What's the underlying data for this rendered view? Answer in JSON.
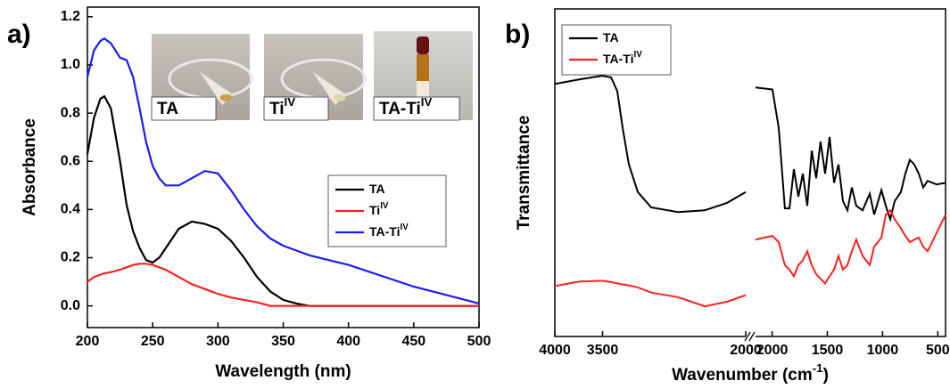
{
  "chart_data": [
    {
      "type": "line",
      "panel_label": "a)",
      "xlabel": "Wavelength (nm)",
      "ylabel": "Absorbance",
      "x": [
        200,
        205,
        210,
        213,
        218,
        225,
        230,
        235,
        240,
        245,
        250,
        255,
        260,
        270,
        280,
        290,
        300,
        310,
        320,
        330,
        340,
        350,
        360,
        370,
        400,
        450,
        500
      ],
      "xlim": [
        200,
        500
      ],
      "xticks": [
        200,
        250,
        300,
        350,
        400,
        450,
        500
      ],
      "ylim": [
        -0.09,
        1.24
      ],
      "yticks": [
        {
          "value": 0,
          "label": "0.0"
        },
        0.2,
        0.4,
        0.6,
        0.8,
        {
          "value": 1,
          "label": "1.0"
        },
        1.2
      ],
      "legend": "center right",
      "series": [
        {
          "name": "TA",
          "color": "#000000",
          "values": [
            0.63,
            0.78,
            0.86,
            0.87,
            0.82,
            0.6,
            0.42,
            0.31,
            0.24,
            0.19,
            0.18,
            0.2,
            0.24,
            0.32,
            0.35,
            0.34,
            0.32,
            0.27,
            0.2,
            0.12,
            0.06,
            0.025,
            0.01,
            0,
            0,
            0,
            0
          ]
        },
        {
          "name": "Ti",
          "name_superscript": "IV",
          "color": "#ff2020",
          "values": [
            0.1,
            0.12,
            0.13,
            0.135,
            0.14,
            0.15,
            0.16,
            0.17,
            0.175,
            0.175,
            0.17,
            0.16,
            0.15,
            0.12,
            0.09,
            0.07,
            0.05,
            0.035,
            0.025,
            0.015,
            0,
            0,
            0,
            0,
            0,
            0,
            0
          ]
        },
        {
          "name": "TA-Ti",
          "name_superscript": "IV",
          "color": "#1a1aff",
          "values": [
            0.95,
            1.06,
            1.1,
            1.11,
            1.09,
            1.03,
            1.02,
            0.95,
            0.82,
            0.68,
            0.58,
            0.53,
            0.5,
            0.5,
            0.53,
            0.56,
            0.55,
            0.48,
            0.4,
            0.33,
            0.28,
            0.25,
            0.23,
            0.21,
            0.17,
            0.08,
            0.01
          ]
        }
      ],
      "insets": [
        {
          "label": "TA"
        },
        {
          "label": "Ti",
          "superscript": "IV"
        },
        {
          "label": "TA-Ti",
          "superscript": "IV"
        }
      ]
    },
    {
      "type": "line",
      "panel_label": "b)",
      "xlabel": [
        "Wavenumber (cm",
        "-1",
        ")"
      ],
      "ylabel": "Transmittance",
      "ylim": [
        0,
        100
      ],
      "legend": "upper left",
      "segments": [
        {
          "xlim": [
            4000,
            2000
          ],
          "xticks": [
            4000,
            3500,
            2000
          ],
          "x": [
            4000,
            3738,
            3505,
            3411,
            3346,
            3290,
            3224,
            3131,
            2991,
            2710,
            2430,
            2196,
            2000
          ]
        },
        {
          "xlim": [
            2150,
            430
          ],
          "xticks": [
            2000,
            1500,
            1000,
            500
          ],
          "x": [
            2150,
            1997,
            1940,
            1884,
            1843,
            1803,
            1762,
            1722,
            1682,
            1641,
            1601,
            1561,
            1520,
            1480,
            1439,
            1399,
            1359,
            1318,
            1278,
            1238,
            1181,
            1116,
            1076,
            1011,
            971,
            931,
            890,
            834,
            794,
            753,
            713,
            672,
            632,
            592,
            511,
            430
          ]
        }
      ],
      "series": [
        {
          "name": "TA",
          "color": "#000000",
          "values": [
            [
              77.1,
              78.5,
              79.6,
              79.1,
              74.9,
              63.7,
              52.5,
              44.1,
              39.4,
              38.0,
              38.5,
              40.8,
              44.1
            ],
            [
              76.0,
              75.4,
              63.7,
              39.1,
              39.1,
              51.1,
              42.7,
              49.7,
              39.9,
              56.7,
              48.3,
              59.5,
              49.7,
              60.9,
              46.9,
              52.5,
              41.3,
              38.5,
              45.5,
              39.9,
              38.5,
              43.6,
              37.2,
              44.7,
              39.9,
              35.8,
              41.3,
              44.1,
              49.7,
              53.9,
              52.5,
              49.7,
              45.5,
              47.5,
              46.4,
              46.9
            ]
          ]
        },
        {
          "name": "TA-Ti",
          "name_superscript": "IV",
          "color": "#ff2020",
          "values": [
            [
              15.4,
              16.8,
              17.0,
              16.6,
              16.2,
              15.9,
              15.6,
              15.0,
              13.4,
              12.0,
              9.2,
              10.6,
              12.6
            ],
            [
              29.6,
              30.7,
              28.8,
              21.8,
              20.4,
              18.4,
              21.8,
              23.2,
              26.0,
              21.8,
              19.0,
              17.6,
              16.2,
              18.4,
              20.4,
              24.6,
              20.4,
              21.8,
              26.0,
              29.6,
              24.6,
              21.8,
              27.4,
              30.2,
              37.2,
              38.5,
              35.8,
              33.0,
              30.7,
              28.8,
              29.6,
              30.2,
              27.4,
              26.0,
              31.6,
              37.2
            ]
          ]
        }
      ]
    }
  ]
}
